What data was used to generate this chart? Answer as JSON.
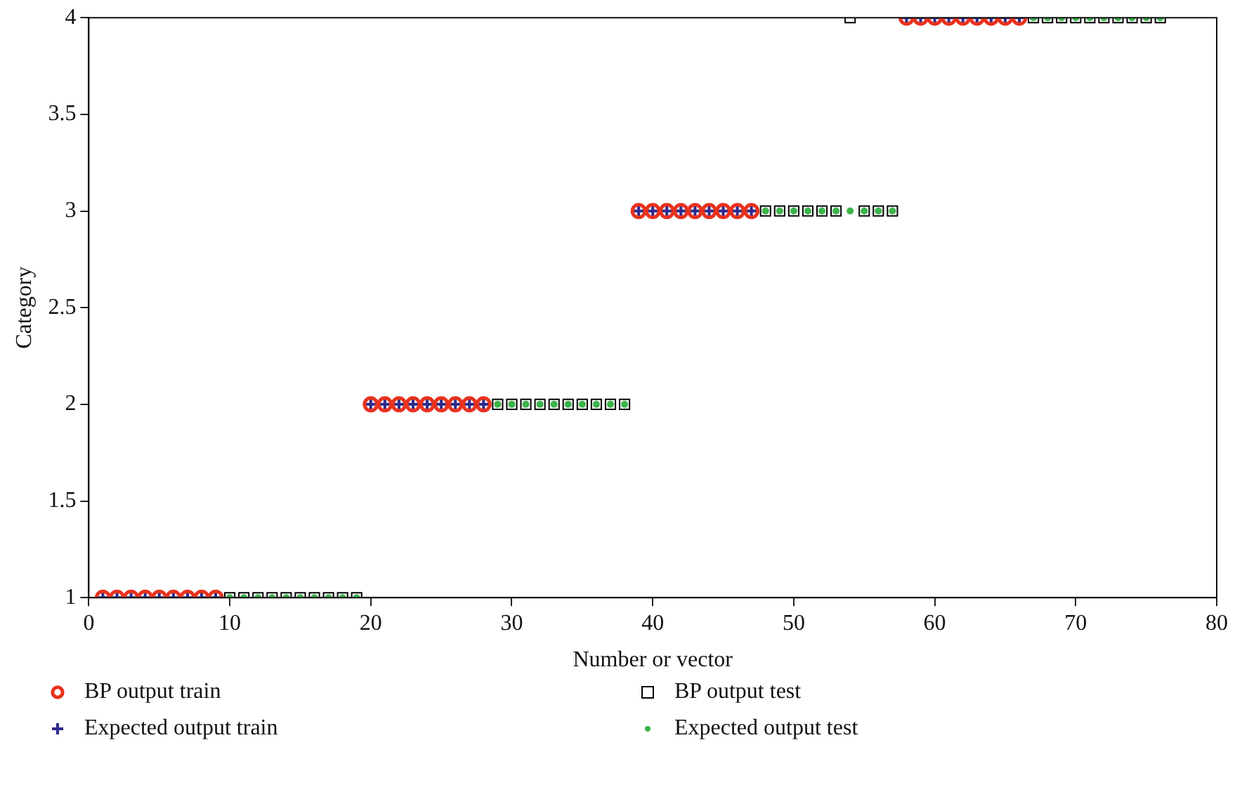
{
  "chart_data": {
    "type": "scatter",
    "xlabel": "Number or vector",
    "ylabel": "Category",
    "xlim": [
      0,
      80
    ],
    "xticks": [
      0,
      10,
      20,
      30,
      40,
      50,
      60,
      70,
      80
    ],
    "ylim": [
      1,
      4
    ],
    "yticks": [
      1,
      1.5,
      2,
      2.5,
      3,
      3.5,
      4
    ],
    "grid": false,
    "legend": "bottom",
    "series": [
      {
        "name": "BP output train",
        "color": "#e8321e",
        "marker": "circle",
        "x": [
          1,
          2,
          3,
          4,
          5,
          6,
          7,
          8,
          9,
          20,
          21,
          22,
          23,
          24,
          25,
          26,
          27,
          28,
          39,
          40,
          41,
          42,
          43,
          44,
          45,
          46,
          47,
          58,
          59,
          60,
          61,
          62,
          63,
          64,
          65,
          66
        ],
        "values": [
          1,
          1,
          1,
          1,
          1,
          1,
          1,
          1,
          1,
          2,
          2,
          2,
          2,
          2,
          2,
          2,
          2,
          2,
          3,
          3,
          3,
          3,
          3,
          3,
          3,
          3,
          3,
          4,
          4,
          4,
          4,
          4,
          4,
          4,
          4,
          4
        ]
      },
      {
        "name": "BP output test",
        "color": "#000000",
        "marker": "square",
        "x": [
          10,
          11,
          12,
          13,
          14,
          15,
          16,
          17,
          18,
          19,
          29,
          30,
          31,
          32,
          33,
          34,
          35,
          36,
          37,
          38,
          48,
          49,
          50,
          51,
          52,
          53,
          54,
          55,
          56,
          57,
          67,
          68,
          69,
          70,
          71,
          72,
          73,
          74,
          75,
          76
        ],
        "values": [
          1,
          1,
          1,
          1,
          1,
          1,
          1,
          1,
          1,
          1,
          2,
          2,
          2,
          2,
          2,
          2,
          2,
          2,
          2,
          2,
          3,
          3,
          3,
          3,
          3,
          3,
          4,
          3,
          3,
          3,
          4,
          4,
          4,
          4,
          4,
          4,
          4,
          4,
          4,
          4
        ]
      },
      {
        "name": "Expected output train",
        "color": "#2e2a8c",
        "marker": "cross",
        "x": [
          1,
          2,
          3,
          4,
          5,
          6,
          7,
          8,
          9,
          20,
          21,
          22,
          23,
          24,
          25,
          26,
          27,
          28,
          39,
          40,
          41,
          42,
          43,
          44,
          45,
          46,
          47,
          58,
          59,
          60,
          61,
          62,
          63,
          64,
          65,
          66
        ],
        "values": [
          1,
          1,
          1,
          1,
          1,
          1,
          1,
          1,
          1,
          2,
          2,
          2,
          2,
          2,
          2,
          2,
          2,
          2,
          3,
          3,
          3,
          3,
          3,
          3,
          3,
          3,
          3,
          4,
          4,
          4,
          4,
          4,
          4,
          4,
          4,
          4
        ]
      },
      {
        "name": "Expected output test",
        "color": "#3cb44b",
        "marker": "circle-small",
        "x": [
          10,
          11,
          12,
          13,
          14,
          15,
          16,
          17,
          18,
          19,
          29,
          30,
          31,
          32,
          33,
          34,
          35,
          36,
          37,
          38,
          48,
          49,
          50,
          51,
          52,
          53,
          54,
          55,
          56,
          57,
          67,
          68,
          69,
          70,
          71,
          72,
          73,
          74,
          75,
          76
        ],
        "values": [
          1,
          1,
          1,
          1,
          1,
          1,
          1,
          1,
          1,
          1,
          2,
          2,
          2,
          2,
          2,
          2,
          2,
          2,
          2,
          2,
          3,
          3,
          3,
          3,
          3,
          3,
          3,
          3,
          3,
          3,
          4,
          4,
          4,
          4,
          4,
          4,
          4,
          4,
          4,
          4
        ]
      }
    ]
  }
}
